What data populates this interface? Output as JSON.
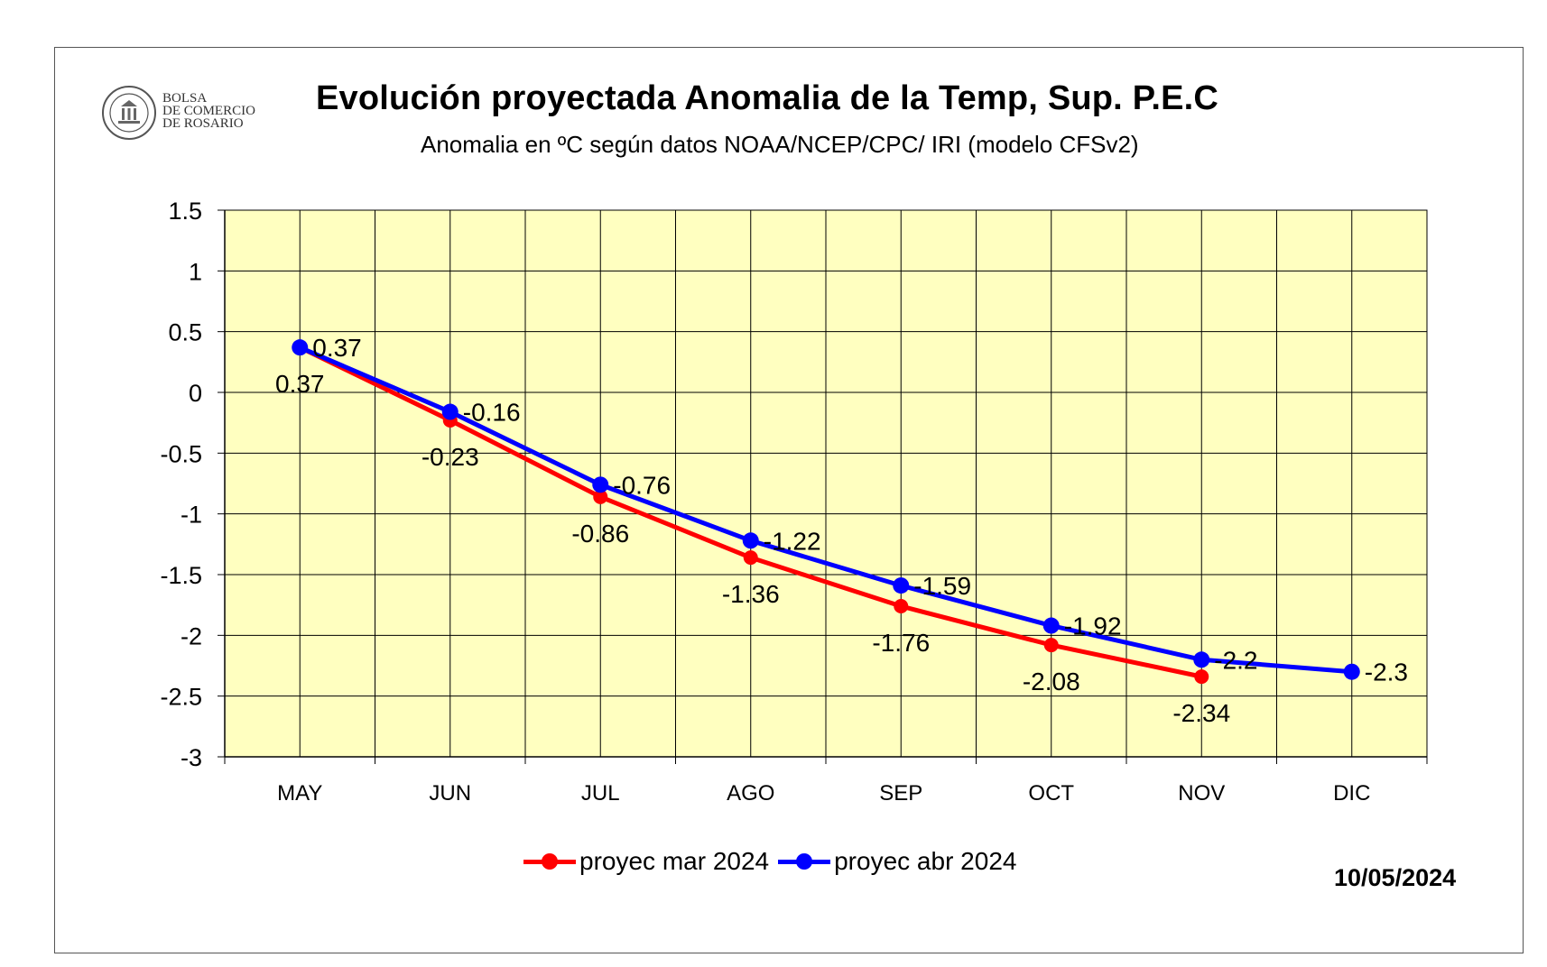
{
  "logo": {
    "org_name": "BOLSA\nDE COMERCIO\nDE ROSARIO",
    "seal_text": "BOLSA DE COMERCIO DE ROSARIO"
  },
  "chart_data": {
    "type": "line",
    "title": "Evolución proyectada Anomalia de la Temp, Sup.  P.E.C",
    "subtitle": "Anomalia en ºC según datos NOAA/NCEP/CPC/ IRI (modelo CFSv2)",
    "xlabel": "",
    "ylabel": "",
    "categories": [
      "MAY",
      "JUN",
      "JUL",
      "AGO",
      "SEP",
      "OCT",
      "NOV",
      "DIC"
    ],
    "ylim": [
      -3,
      1.5
    ],
    "yticks": [
      1.5,
      1,
      0.5,
      0,
      -0.5,
      -1,
      -1.5,
      -2,
      -2.5,
      -3
    ],
    "ytick_labels": [
      "1.5",
      "1",
      "0.5",
      "0",
      "-0.5",
      "-1",
      "-1.5",
      "-2",
      "-2.5",
      "-3"
    ],
    "grid": true,
    "plot_background": "#ffffc0",
    "legend_position": "bottom",
    "series": [
      {
        "name": "proyec mar 2024",
        "color": "#ff0000",
        "values": [
          0.37,
          -0.23,
          -0.86,
          -1.36,
          -1.76,
          -2.08,
          -2.34,
          null
        ],
        "labels": [
          "0.37",
          "-0.23",
          "-0.86",
          "-1.36",
          "-1.76",
          "-2.08",
          "-2.34",
          ""
        ],
        "label_position": "below"
      },
      {
        "name": "proyec abr 2024",
        "color": "#0000ff",
        "values": [
          0.37,
          -0.16,
          -0.76,
          -1.22,
          -1.59,
          -1.92,
          -2.2,
          -2.3
        ],
        "labels": [
          "0.37",
          "-0.16",
          "-0.76",
          "-1.22",
          "-1.59",
          "-1.92",
          "-2.2",
          "-2.3"
        ],
        "label_position": "right"
      }
    ],
    "date": "10/05/2024"
  }
}
